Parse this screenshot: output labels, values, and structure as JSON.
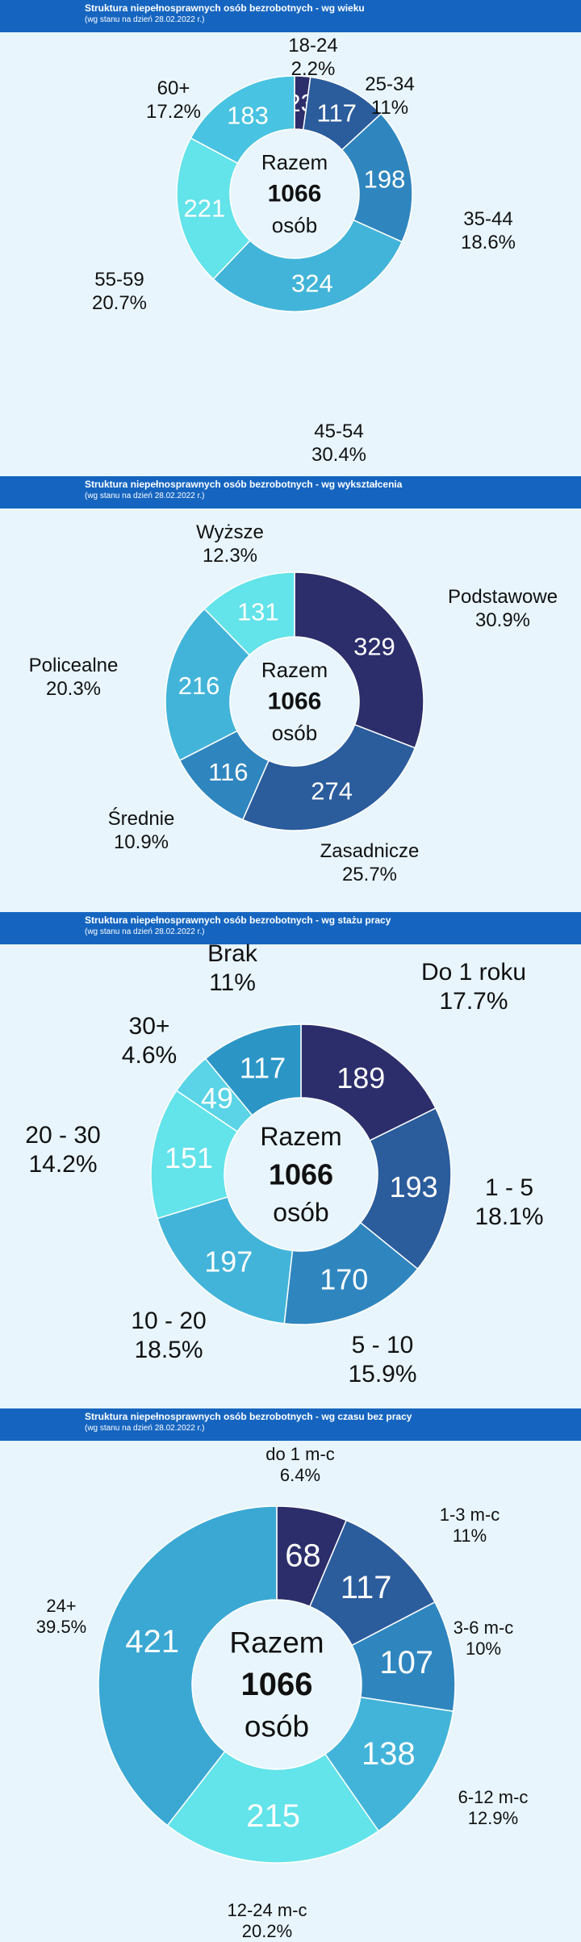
{
  "center": {
    "line1": "Razem",
    "line2": "1066",
    "line3": "osób"
  },
  "chart_data": [
    {
      "type": "pie",
      "title": "Struktura niepełnosprawnych osób bezrobotnych - wg wieku",
      "subtitle": "(wg stanu na dzień 28.02.2022 r.)",
      "total": 1066,
      "categories": [
        "18-24",
        "25-34",
        "35-44",
        "45-54",
        "55-59",
        "60+"
      ],
      "values": [
        23,
        117,
        198,
        324,
        221,
        183
      ],
      "percents": [
        "2.2%",
        "11%",
        "18.6%",
        "30.4%",
        "20.7%",
        "17.2%"
      ],
      "colors": [
        "#2c2e6b",
        "#2b5c9c",
        "#2f86bf",
        "#42b4d9",
        "#63e3ea",
        "#48c3e1"
      ]
    },
    {
      "type": "pie",
      "title": "Struktura niepełnosprawnych osób bezrobotnych - wg wykształcenia",
      "subtitle": "(wg stanu na dzień 28.02.2022 r.)",
      "total": 1066,
      "categories": [
        "Podstawowe",
        "Zasadnicze",
        "Średnie",
        "Policealne",
        "Wyższe"
      ],
      "values": [
        329,
        274,
        116,
        216,
        131
      ],
      "percents": [
        "30.9%",
        "25.7%",
        "10.9%",
        "20.3%",
        "12.3%"
      ],
      "colors": [
        "#2c2e6b",
        "#2b5c9c",
        "#2f86bf",
        "#42b4d9",
        "#63e3ea"
      ]
    },
    {
      "type": "pie",
      "title": "Struktura niepełnosprawnych osób bezrobotnych - wg stażu pracy",
      "subtitle": "(wg stanu na dzień 28.02.2022 r.)",
      "total": 1066,
      "categories": [
        "Do 1 roku",
        "1 - 5",
        "5 - 10",
        "10 - 20",
        "20 - 30",
        "30+",
        "Brak"
      ],
      "values": [
        189,
        193,
        170,
        197,
        151,
        49,
        117
      ],
      "percents": [
        "17.7%",
        "18.1%",
        "15.9%",
        "18.5%",
        "14.2%",
        "4.6%",
        "11%"
      ],
      "colors": [
        "#2c2e6b",
        "#2b5c9c",
        "#2f86bf",
        "#42b4d9",
        "#63e3ea",
        "#5ad4e6",
        "#2b96c6"
      ]
    },
    {
      "type": "pie",
      "title": "Struktura niepełnosprawnych osób bezrobotnych - wg czasu bez pracy",
      "subtitle": "(wg stanu na dzień 28.02.2022 r.)",
      "total": 1066,
      "categories": [
        "do 1 m-c",
        "1-3 m-c",
        "3-6 m-c",
        "6-12 m-c",
        "12-24 m-c",
        "24+"
      ],
      "values": [
        68,
        117,
        107,
        138,
        215,
        421
      ],
      "percents": [
        "6.4%",
        "11%",
        "10%",
        "12.9%",
        "20.2%",
        "39.5%"
      ],
      "colors": [
        "#2c2e6b",
        "#2b5c9c",
        "#2f86bf",
        "#42b4d9",
        "#63e3ea",
        "#3aa8d3"
      ]
    }
  ]
}
